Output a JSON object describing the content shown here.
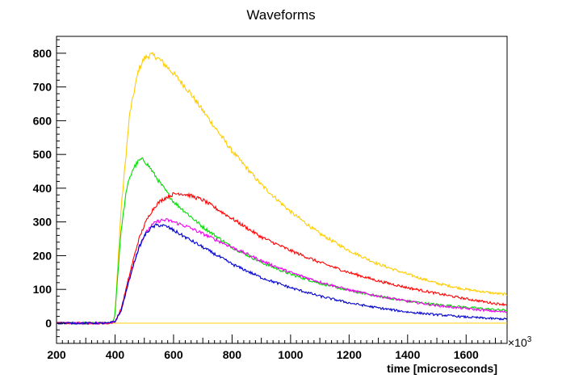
{
  "chart_data": {
    "type": "line",
    "title": "Waveforms",
    "xlabel": "time [microseconds]",
    "ylabel": "",
    "x_multiplier_label": "×10",
    "x_multiplier_exponent": "3",
    "xlim": [
      200,
      1740
    ],
    "ylim": [
      -60,
      850
    ],
    "x_ticks": [
      200,
      400,
      600,
      800,
      1000,
      1200,
      1400,
      1600
    ],
    "y_ticks": [
      0,
      100,
      200,
      300,
      400,
      500,
      600,
      700,
      800
    ],
    "grid": false,
    "legend": "none",
    "series": [
      {
        "color": "#ffcc00",
        "x": [
          200,
          380,
          395,
          400,
          420,
          450,
          480,
          500,
          520,
          540,
          560,
          600,
          650,
          700,
          800,
          900,
          1000,
          1100,
          1200,
          1300,
          1400,
          1500,
          1600,
          1700,
          1740
        ],
        "y": [
          0,
          0,
          5,
          30,
          330,
          620,
          750,
          785,
          795,
          790,
          775,
          740,
          690,
          630,
          510,
          410,
          330,
          265,
          215,
          175,
          145,
          118,
          100,
          88,
          85
        ]
      },
      {
        "color": "#00dd00",
        "x": [
          200,
          380,
          395,
          400,
          420,
          440,
          460,
          480,
          490,
          500,
          520,
          550,
          600,
          700,
          800,
          900,
          1000,
          1100,
          1200,
          1300,
          1400,
          1500,
          1600,
          1700,
          1740
        ],
        "y": [
          0,
          0,
          5,
          30,
          270,
          400,
          455,
          480,
          485,
          482,
          460,
          420,
          360,
          285,
          225,
          180,
          145,
          118,
          97,
          80,
          65,
          55,
          47,
          40,
          38
        ]
      },
      {
        "color": "#ff0000",
        "x": [
          200,
          380,
          400,
          420,
          440,
          460,
          480,
          500,
          520,
          540,
          560,
          580,
          600,
          620,
          650,
          700,
          800,
          900,
          1000,
          1100,
          1200,
          1300,
          1400,
          1500,
          1600,
          1700,
          1740
        ],
        "y": [
          0,
          0,
          5,
          40,
          110,
          180,
          245,
          290,
          325,
          350,
          365,
          375,
          382,
          385,
          380,
          365,
          310,
          255,
          215,
          180,
          150,
          125,
          105,
          88,
          72,
          58,
          55
        ]
      },
      {
        "color": "#ee00ee",
        "x": [
          200,
          380,
          400,
          420,
          440,
          460,
          480,
          500,
          520,
          540,
          560,
          580,
          600,
          650,
          700,
          800,
          900,
          1000,
          1100,
          1200,
          1300,
          1400,
          1500,
          1600,
          1700,
          1740
        ],
        "y": [
          0,
          0,
          5,
          35,
          100,
          165,
          220,
          260,
          285,
          300,
          305,
          305,
          300,
          285,
          265,
          225,
          185,
          150,
          122,
          98,
          80,
          65,
          52,
          43,
          35,
          33
        ]
      },
      {
        "color": "#0000cc",
        "x": [
          200,
          380,
          400,
          420,
          440,
          460,
          480,
          500,
          520,
          540,
          560,
          580,
          600,
          650,
          700,
          800,
          900,
          1000,
          1100,
          1200,
          1300,
          1400,
          1500,
          1600,
          1700,
          1740
        ],
        "y": [
          0,
          0,
          5,
          35,
          100,
          165,
          220,
          258,
          280,
          290,
          290,
          285,
          275,
          250,
          225,
          175,
          135,
          105,
          80,
          60,
          45,
          33,
          25,
          18,
          13,
          12
        ]
      }
    ]
  }
}
